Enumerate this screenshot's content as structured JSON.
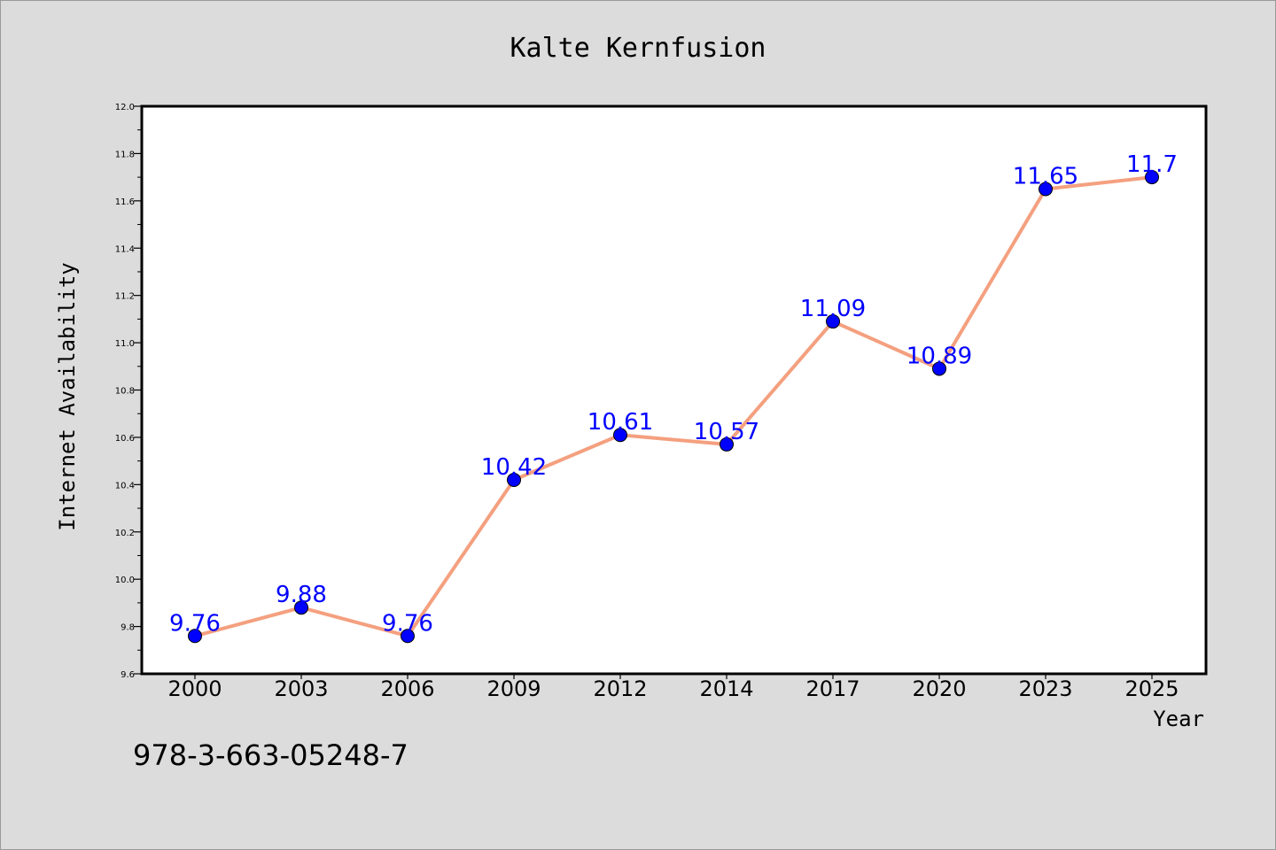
{
  "chart_data": {
    "type": "line",
    "title": "Kalte Kernfusion",
    "xlabel": "Year",
    "ylabel": "Internet Availability",
    "categories": [
      "2000",
      "2003",
      "2006",
      "2009",
      "2012",
      "2014",
      "2017",
      "2020",
      "2023",
      "2025"
    ],
    "series": [
      {
        "values": [
          9.76,
          9.88,
          9.76,
          10.42,
          10.61,
          10.57,
          11.09,
          10.89,
          11.65,
          11.7
        ],
        "data_labels": [
          "9.76",
          "9.88",
          "9.76",
          "10.42",
          "10.61",
          "10.57",
          "11.09",
          "10.89",
          "11.65",
          "11.7"
        ],
        "line_color": "#f4a07f",
        "marker_color": "#0000ff",
        "label_color": "#0000ff"
      }
    ],
    "ylim": [
      9.6,
      12.0
    ],
    "yticks": [
      9.6,
      9.8,
      10.0,
      10.2,
      10.4,
      10.6,
      10.8,
      11.0,
      11.2,
      11.4,
      11.6,
      11.8,
      12.0
    ],
    "ytick_labels": [
      "9.6",
      "9.8",
      "10.0",
      "10.2",
      "10.4",
      "10.6",
      "10.8",
      "11.0",
      "11.2",
      "11.4",
      "11.6",
      "11.8",
      "12.0"
    ],
    "grid": false,
    "legend": "none"
  },
  "footer": {
    "isbn": "978-3-663-05248-7"
  },
  "colors": {
    "background": "#dcdcdc",
    "plot_background": "#ffffff",
    "frame": "#000000"
  }
}
